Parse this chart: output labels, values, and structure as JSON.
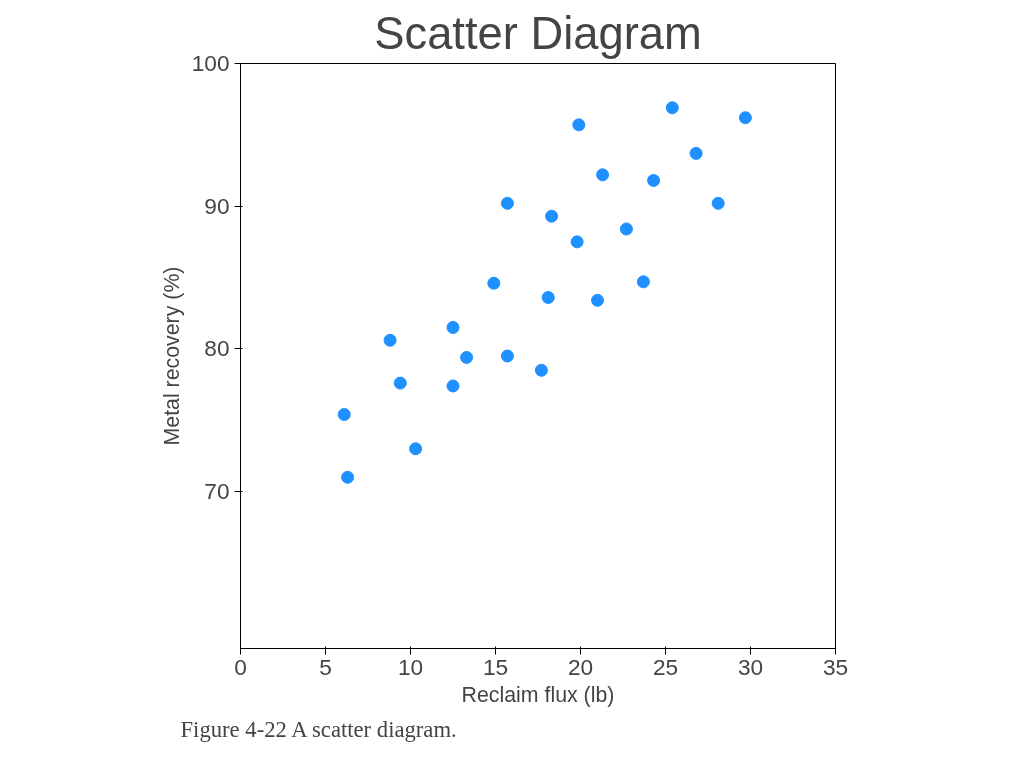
{
  "chart_data": {
    "type": "scatter",
    "title": "Scatter Diagram",
    "xlabel": "Reclaim flux (lb)",
    "ylabel": "Metal recovery (%)",
    "annotations": [
      "Figure 4-22    A scatter diagram."
    ],
    "series": [
      {
        "color": "#1e90ff",
        "x": [
          6.1,
          6.3,
          8.8,
          9.4,
          10.3,
          12.5,
          12.5,
          13.3,
          14.9,
          15.7,
          15.7,
          17.7,
          18.1,
          18.3,
          19.8,
          19.9,
          21.0,
          21.3,
          22.7,
          23.7,
          24.3,
          25.4,
          26.8,
          28.1,
          29.7
        ],
        "values": [
          75.4,
          71.0,
          80.6,
          77.6,
          73.0,
          81.5,
          77.4,
          79.4,
          84.6,
          90.2,
          79.5,
          78.5,
          83.6,
          89.3,
          87.5,
          95.7,
          83.4,
          92.2,
          88.4,
          84.7,
          91.8,
          96.9,
          93.7,
          90.2,
          96.2
        ]
      }
    ],
    "xlim": [
      0,
      35
    ],
    "xticks": [
      0,
      5,
      10,
      15,
      20,
      25,
      30,
      35
    ],
    "ylim": [
      59,
      100
    ],
    "yticks": [
      70,
      80,
      90,
      100
    ],
    "marker": "circle",
    "grid": false
  }
}
